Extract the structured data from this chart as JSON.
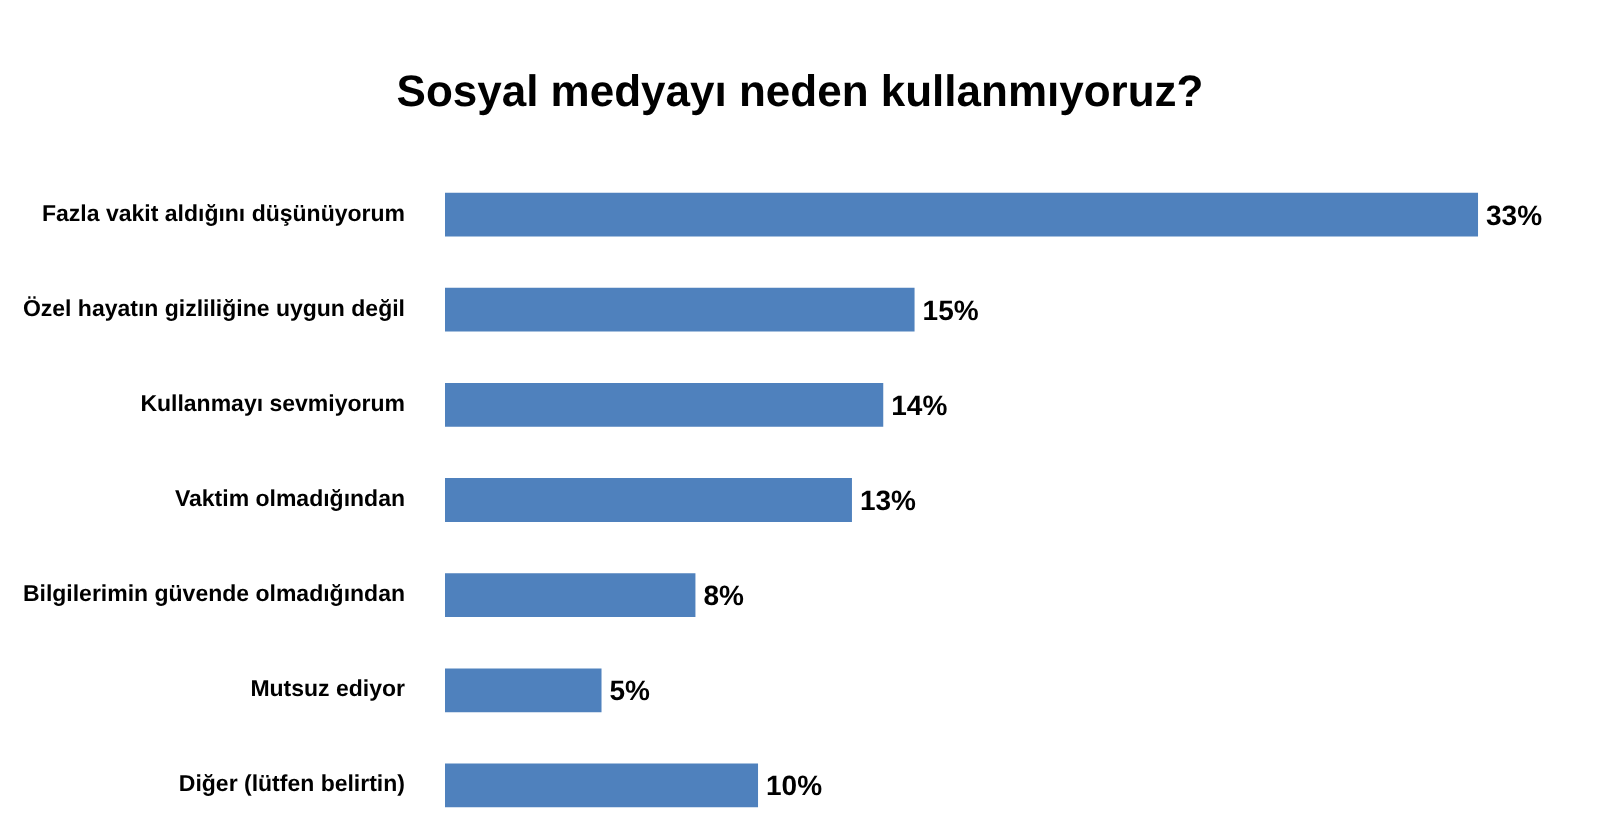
{
  "chart_data": {
    "type": "bar",
    "orientation": "horizontal",
    "title": "Sosyal medyayı neden kullanmıyoruz?",
    "categories": [
      "Fazla vakit aldığını düşünüyorum",
      "Özel hayatın gizliliğine uygun değil",
      "Kullanmayı sevmiyorum",
      "Vaktim olmadığından",
      "Bilgilerimin güvende olmadığından",
      "Mutsuz ediyor",
      "Diğer (lütfen belirtin)"
    ],
    "values": [
      33,
      15,
      14,
      13,
      8,
      5,
      10
    ],
    "value_labels": [
      "33%",
      "15%",
      "14%",
      "13%",
      "8%",
      "5%",
      "10%"
    ],
    "color": "#4f81bd",
    "tick_labels": "y"
  }
}
